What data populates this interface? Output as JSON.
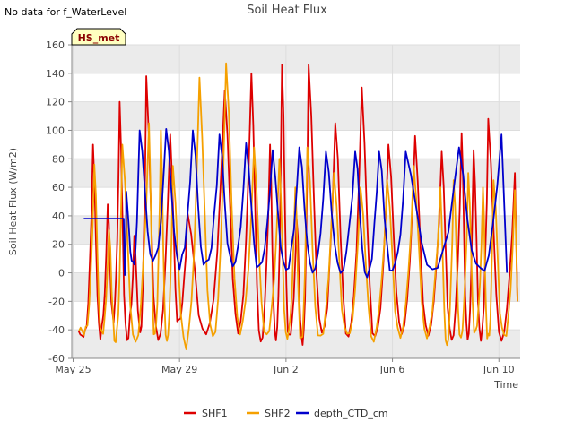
{
  "no_data_note": "No data for f_WaterLevel",
  "chart_data": {
    "type": "line",
    "title": "Soil Heat Flux",
    "xlabel": "Time",
    "ylabel": "Soil Heat Flux (W/m2)",
    "site_badge": "HS_met",
    "x_unit": "days since May 25",
    "xlim": [
      -0.05,
      16.8
    ],
    "ylim": [
      -60,
      160
    ],
    "y_ticks": [
      -60,
      -40,
      -20,
      0,
      20,
      40,
      60,
      80,
      100,
      120,
      140,
      160
    ],
    "x_ticks": [
      {
        "day": 0,
        "label": "May 25"
      },
      {
        "day": 4,
        "label": "May 29"
      },
      {
        "day": 8,
        "label": "Jun 2"
      },
      {
        "day": 12,
        "label": "Jun 6"
      },
      {
        "day": 16,
        "label": "Jun 10"
      }
    ],
    "colors": {
      "SHF1": "#dd0000",
      "SHF2": "#f5a000",
      "depth_CTD_cm": "#0000cc",
      "band": "#ebebeb"
    },
    "series": [
      {
        "name": "SHF1",
        "daily_peaks": [
          90,
          48,
          120,
          26,
          138,
          97,
          42,
          128,
          140,
          90,
          146,
          38,
          146,
          105,
          130,
          90,
          96,
          85,
          98,
          86,
          108,
          70
        ],
        "daily_troughs": [
          -40,
          -44,
          -30,
          -45,
          -43,
          -48,
          -35,
          -44,
          -40,
          -48,
          -50,
          -45,
          -48,
          -45,
          -45,
          -46,
          -42,
          -44,
          -46,
          -44,
          -45,
          -44
        ],
        "peak_days": [
          0.75,
          1.3,
          1.75,
          2.3,
          2.75,
          3.65,
          4.3,
          5.7,
          6.7,
          7.4,
          7.85,
          8.4,
          8.85,
          9.85,
          10.85,
          11.85,
          12.85,
          13.85,
          14.6,
          15.05,
          15.6,
          16.6
        ]
      },
      {
        "name": "SHF2",
        "daily_peaks": [
          76,
          30,
          90,
          105,
          100,
          75,
          137,
          147,
          88,
          80,
          60,
          88,
          70,
          60,
          65,
          75,
          60,
          65,
          70,
          60,
          65,
          58
        ],
        "daily_troughs": [
          -40,
          -46,
          -48,
          -46,
          -45,
          -48,
          -50,
          -46,
          -42,
          -48,
          -46,
          -47,
          -44,
          -46,
          -44,
          -44,
          -45,
          -48,
          -42,
          -44,
          -46,
          -45
        ],
        "peak_days": [
          0.8,
          1.35,
          1.85,
          2.85,
          3.3,
          3.75,
          4.75,
          5.75,
          6.8,
          7.75,
          8.35,
          8.8,
          9.8,
          10.8,
          11.8,
          12.8,
          13.8,
          14.3,
          14.85,
          15.4,
          15.8,
          16.6
        ]
      },
      {
        "name": "depth_CTD_cm",
        "flat_segment": {
          "start_day": 0.4,
          "end_day": 1.9,
          "value": 38
        },
        "daily_peaks": [
          57,
          100,
          101,
          100,
          97,
          91,
          86,
          88,
          85,
          85,
          85,
          85,
          88,
          97
        ],
        "daily_troughs": [
          0,
          5,
          5,
          5,
          5,
          5,
          5,
          0,
          0,
          0,
          0,
          0,
          0,
          0
        ],
        "peak_days": [
          2.0,
          2.5,
          3.5,
          4.5,
          5.5,
          6.5,
          7.5,
          8.5,
          9.5,
          10.6,
          11.5,
          12.5,
          14.5,
          16.1
        ]
      }
    ],
    "legend": {
      "position": "bottom-center",
      "entries": [
        "SHF1",
        "SHF2",
        "depth_CTD_cm"
      ]
    }
  }
}
